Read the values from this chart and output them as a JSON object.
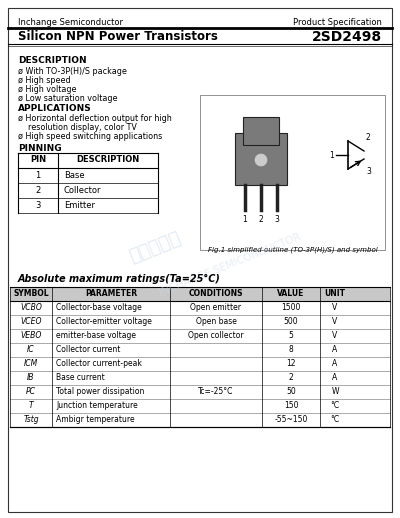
{
  "company": "Inchange Semiconductor",
  "spec_type": "Product Specification",
  "title": "Silicon NPN Power Transistors",
  "part_number": "2SD2498",
  "description_title": "DESCRIPTION",
  "description_items": [
    "ø With TO-3P(H)/S package",
    "ø High speed",
    "ø High voltage",
    "ø Low saturation voltage"
  ],
  "applications_title": "APPLICATIONS",
  "applications_items": [
    "ø Horizontal deflection output for high",
    "    resolution display, color TV",
    "ø High speed switching applications"
  ],
  "pinning_title": "PINNING",
  "pin_headers": [
    "PIN",
    "DESCRIPTION"
  ],
  "pin_rows": [
    [
      "1",
      "Base"
    ],
    [
      "2",
      "Collector"
    ],
    [
      "3",
      "Emitter"
    ]
  ],
  "fig_caption": "Fig.1 simplified outline (TO-3P(H)/S) and symbol",
  "abs_max_title": "Absolute maximum ratings(Ta=25°C)",
  "table_headers": [
    "SYMBOL",
    "PARAMETER",
    "CONDITIONS",
    "VALUE",
    "UNIT"
  ],
  "table_rows": [
    [
      "VCBO",
      "Collector-base voltage",
      "Open emitter",
      "1500",
      "V"
    ],
    [
      "VCEO",
      "Collector-emitter voltage",
      "Open base",
      "500",
      "V"
    ],
    [
      "VEBO",
      "emitter-base voltage",
      "Open collector",
      "5",
      "V"
    ],
    [
      "IC",
      "Collector current",
      "",
      "8",
      "A"
    ],
    [
      "ICM",
      "Collector current-peak",
      "",
      "12",
      "A"
    ],
    [
      "IB",
      "Base current",
      "",
      "2",
      "A"
    ],
    [
      "PC",
      "Total power dissipation",
      "Tc=-25°C",
      "50",
      "W"
    ],
    [
      "T",
      "Junction temperature",
      "",
      "150",
      "°C"
    ],
    [
      "Tstg",
      "Ambigr temperature",
      "",
      "-55~150",
      "°C"
    ]
  ],
  "watermark_cn": "国电半导体",
  "watermark_en": "INCHANGE SEMICONDUCTOR",
  "bg_color": "#ffffff"
}
